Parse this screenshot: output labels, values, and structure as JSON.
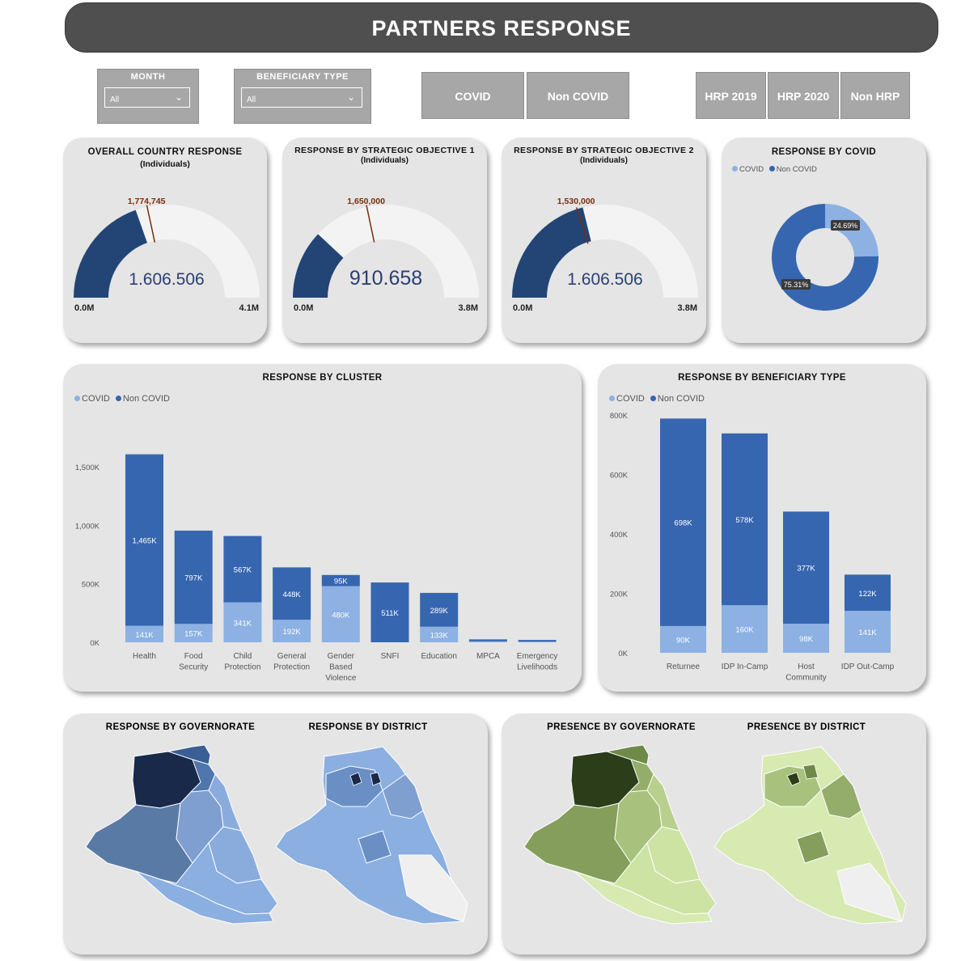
{
  "header": {
    "title": "PARTNERS RESPONSE"
  },
  "filters": {
    "month": {
      "label": "MONTH",
      "value": "All"
    },
    "beneficiary": {
      "label": "BENEFICIARY TYPE",
      "value": "All"
    }
  },
  "buttons": {
    "covid": "COVID",
    "non_covid": "Non COVID",
    "hrp2019": "HRP 2019",
    "hrp2020": "HRP 2020",
    "non_hrp": "Non HRP"
  },
  "colors": {
    "covid": "#8cb1e2",
    "non_covid": "#3766b0",
    "gauge_fill": "#234575",
    "gauge_bg": "#f3f3f3",
    "target": "#7a2e0a"
  },
  "gauges": [
    {
      "title": "OVERALL COUNTRY RESPONSE",
      "sub": "(Individuals)",
      "value_label": "1.606.506",
      "value": 1606506,
      "target_label": "1,774,745",
      "target": 1774745,
      "min_label": "0.0M",
      "max_label": "4.1M",
      "max": 4100000
    },
    {
      "title": "RESPONSE BY STRATEGIC OBJECTIVE 1",
      "sub": "(Individuals)",
      "value_label": "910.658",
      "value": 910658,
      "target_label": "1,650,000",
      "target": 1650000,
      "min_label": "0.0M",
      "max_label": "3.8M",
      "max": 3800000
    },
    {
      "title": "RESPONSE BY STRATEGIC OBJECTIVE 2",
      "sub": "(Individuals)",
      "value_label": "1.606.506",
      "value": 1606506,
      "target_label": "1,530,000",
      "target": 1530000,
      "min_label": "0.0M",
      "max_label": "3.8M",
      "max": 3800000
    }
  ],
  "donut": {
    "title": "RESPONSE BY COVID",
    "legend": [
      "COVID",
      "Non COVID"
    ],
    "slices": [
      {
        "name": "COVID",
        "pct": 24.69,
        "label": "24.69%"
      },
      {
        "name": "Non COVID",
        "pct": 75.31,
        "label": "75.31%"
      }
    ]
  },
  "cluster_chart": {
    "title": "RESPONSE BY CLUSTER",
    "legend": [
      "COVID",
      "Non COVID"
    ],
    "y_ticks": [
      "0K",
      "500K",
      "1,000K",
      "1,500K"
    ],
    "chart_data": {
      "type": "bar",
      "stacked": true,
      "ylim": [
        0,
        1700
      ],
      "categories": [
        [
          "Health"
        ],
        [
          "Food",
          "Security"
        ],
        [
          "Child",
          "Protection"
        ],
        [
          "General",
          "Protection"
        ],
        [
          "Gender",
          "Based",
          "Violence"
        ],
        [
          "SNFI"
        ],
        [
          "Education"
        ],
        [
          "MPCA"
        ],
        [
          "Emergency",
          "Livelihoods"
        ]
      ],
      "series": [
        {
          "name": "COVID",
          "values": [
            141,
            157,
            341,
            192,
            480,
            0,
            133,
            8,
            5
          ],
          "labels": [
            "141K",
            "157K",
            "341K",
            "192K",
            "480K",
            "",
            "133K",
            "",
            ""
          ]
        },
        {
          "name": "Non COVID",
          "values": [
            1465,
            797,
            567,
            448,
            95,
            511,
            289,
            17,
            15
          ],
          "labels": [
            "1,465K",
            "797K",
            "567K",
            "448K",
            "95K",
            "511K",
            "289K",
            "",
            ""
          ]
        }
      ]
    }
  },
  "beneficiary_chart": {
    "title": "RESPONSE BY BENEFICIARY TYPE",
    "legend": [
      "COVID",
      "Non COVID"
    ],
    "y_ticks": [
      "0K",
      "200K",
      "400K",
      "600K",
      "800K"
    ],
    "chart_data": {
      "type": "bar",
      "stacked": true,
      "ylim": [
        0,
        800
      ],
      "categories": [
        [
          "Returnee"
        ],
        [
          "IDP In-Camp"
        ],
        [
          "Host",
          "Community"
        ],
        [
          "IDP Out-Camp"
        ]
      ],
      "series": [
        {
          "name": "COVID",
          "values": [
            90,
            160,
            98,
            141
          ],
          "labels": [
            "90K",
            "160K",
            "98K",
            "141K"
          ]
        },
        {
          "name": "Non COVID",
          "values": [
            698,
            578,
            377,
            122
          ],
          "labels": [
            "698K",
            "578K",
            "377K",
            "122K"
          ]
        }
      ]
    }
  },
  "maps": {
    "response_gov": "RESPONSE BY GOVERNORATE",
    "response_dist": "RESPONSE BY DISTRICT",
    "presence_gov": "PRESENCE BY GOVERNORATE",
    "presence_dist": "PRESENCE BY DISTRICT"
  }
}
